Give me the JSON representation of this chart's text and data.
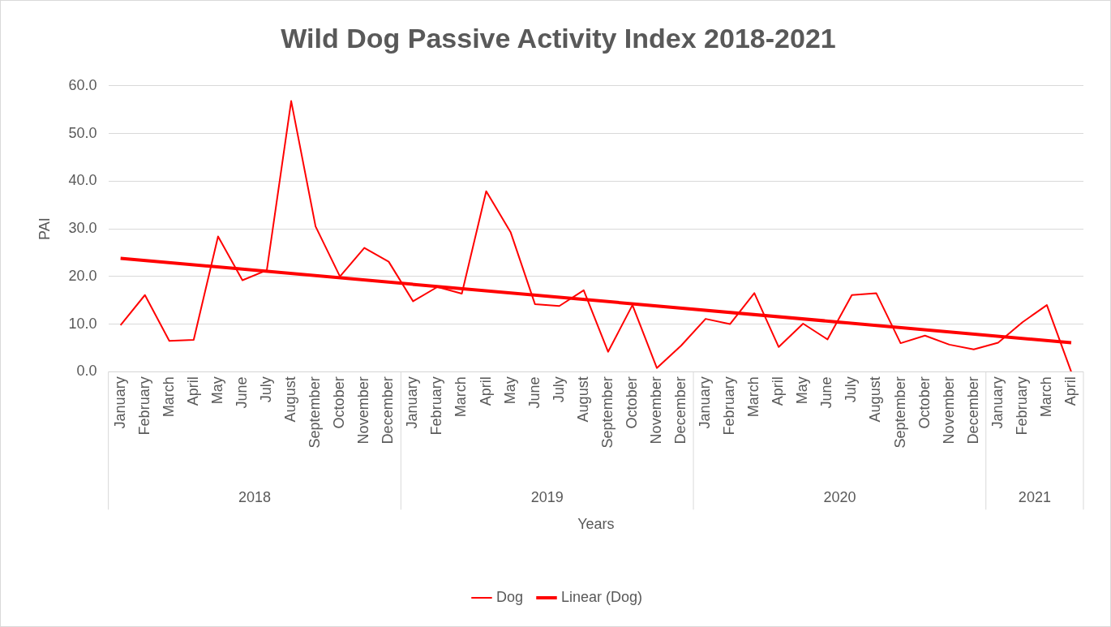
{
  "chart_data": {
    "type": "line",
    "title": "Wild Dog Passive Activity Index 2018-2021",
    "xlabel": "Years",
    "ylabel": "PAI",
    "categories": [
      "January",
      "February",
      "March",
      "April",
      "May",
      "June",
      "July",
      "August",
      "September",
      "October",
      "November",
      "December",
      "January",
      "February",
      "March",
      "April",
      "May",
      "June",
      "July",
      "August",
      "September",
      "October",
      "November",
      "December",
      "January",
      "February",
      "March",
      "April",
      "May",
      "June",
      "July",
      "August",
      "September",
      "October",
      "November",
      "December",
      "January",
      "February",
      "March",
      "April"
    ],
    "annotations": [
      "2018",
      "2019",
      "2020",
      "2021"
    ],
    "series": [
      {
        "name": "Dog",
        "color": "#ff0000",
        "values": [
          9.8,
          16.1,
          6.5,
          6.7,
          28.4,
          19.2,
          21.3,
          56.8,
          30.5,
          20.0,
          26.0,
          23.1,
          14.8,
          17.8,
          16.4,
          37.9,
          29.3,
          14.2,
          13.8,
          17.1,
          4.2,
          14.0,
          0.8,
          5.5,
          11.1,
          10.0,
          16.5,
          5.2,
          10.1,
          6.8,
          16.1,
          16.5,
          6.0,
          7.6,
          5.7,
          4.7,
          6.1,
          10.4,
          14.0,
          0.0
        ]
      },
      {
        "name": "Linear (Dog)",
        "type": "line",
        "color": "#ff0000",
        "values": [
          23.8,
          null,
          null,
          null,
          null,
          null,
          null,
          null,
          null,
          null,
          null,
          null,
          null,
          null,
          null,
          null,
          null,
          null,
          null,
          null,
          null,
          null,
          null,
          null,
          null,
          null,
          null,
          null,
          null,
          null,
          null,
          null,
          null,
          null,
          null,
          null,
          null,
          null,
          null,
          6.1
        ]
      }
    ],
    "ylim": [
      0,
      60
    ],
    "yticks": [
      {
        "value": 0,
        "label": "0.0"
      },
      {
        "value": 10,
        "label": "10.0"
      },
      {
        "value": 20,
        "label": "20.0"
      },
      {
        "value": 30,
        "label": "30.0"
      },
      {
        "value": 40,
        "label": "40.0"
      },
      {
        "value": 50,
        "label": "50.0"
      },
      {
        "value": 60,
        "label": "60.0"
      }
    ],
    "grid": "y",
    "legend": "bottom",
    "marker": "none",
    "line_style": "solid"
  }
}
